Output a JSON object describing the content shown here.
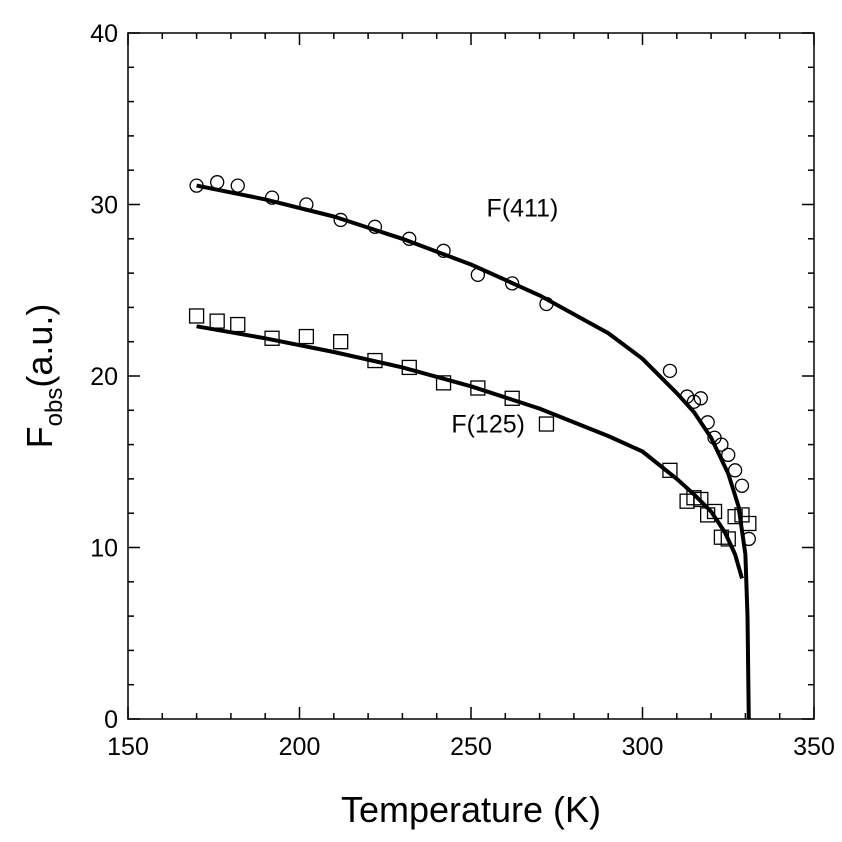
{
  "chart_data": {
    "type": "scatter",
    "xlabel": "Temperature (K)",
    "ylabel": {
      "main": "F",
      "sub": "obs",
      "unit": "(a.u.)"
    },
    "xlim": [
      150,
      350
    ],
    "ylim": [
      0,
      40
    ],
    "xticks": [
      "150",
      "200",
      "250",
      "300",
      "350"
    ],
    "yticks": [
      "0",
      "10",
      "20",
      "30",
      "40"
    ],
    "grid": false,
    "series": [
      {
        "name": "F(411)",
        "marker": "circle",
        "points": [
          [
            170,
            31.1
          ],
          [
            176,
            31.3
          ],
          [
            182,
            31.1
          ],
          [
            192,
            30.4
          ],
          [
            202,
            30.0
          ],
          [
            212,
            29.1
          ],
          [
            222,
            28.7
          ],
          [
            232,
            28.0
          ],
          [
            242,
            27.3
          ],
          [
            252,
            25.9
          ],
          [
            262,
            25.4
          ],
          [
            272,
            24.2
          ],
          [
            308,
            20.3
          ],
          [
            313,
            18.8
          ],
          [
            315,
            18.5
          ],
          [
            317,
            18.7
          ],
          [
            319,
            17.3
          ],
          [
            321,
            16.4
          ],
          [
            323,
            16.0
          ],
          [
            325,
            15.4
          ],
          [
            327,
            14.5
          ],
          [
            329,
            13.6
          ],
          [
            331,
            10.5
          ]
        ],
        "fit": [
          [
            170,
            31.1
          ],
          [
            190,
            30.3
          ],
          [
            210,
            29.3
          ],
          [
            230,
            28.0
          ],
          [
            250,
            26.5
          ],
          [
            270,
            24.7
          ],
          [
            290,
            22.5
          ],
          [
            300,
            21.0
          ],
          [
            310,
            19.0
          ],
          [
            315,
            17.9
          ],
          [
            320,
            16.4
          ],
          [
            325,
            14.3
          ],
          [
            328,
            12.4
          ],
          [
            330,
            9.6
          ],
          [
            330.6,
            6.0
          ],
          [
            331,
            0
          ]
        ]
      },
      {
        "name": "F(125)",
        "marker": "square",
        "points": [
          [
            170,
            23.5
          ],
          [
            176,
            23.2
          ],
          [
            182,
            23.0
          ],
          [
            192,
            22.2
          ],
          [
            202,
            22.3
          ],
          [
            212,
            22.0
          ],
          [
            222,
            20.9
          ],
          [
            232,
            20.5
          ],
          [
            242,
            19.6
          ],
          [
            252,
            19.3
          ],
          [
            262,
            18.7
          ],
          [
            272,
            17.2
          ],
          [
            308,
            14.5
          ],
          [
            313,
            12.7
          ],
          [
            315,
            12.9
          ],
          [
            317,
            12.8
          ],
          [
            319,
            11.9
          ],
          [
            321,
            12.1
          ],
          [
            323,
            10.6
          ],
          [
            325,
            10.5
          ],
          [
            327,
            11.8
          ],
          [
            329,
            11.9
          ],
          [
            331,
            11.4
          ]
        ],
        "fit": [
          [
            170,
            22.9
          ],
          [
            190,
            22.2
          ],
          [
            210,
            21.4
          ],
          [
            230,
            20.5
          ],
          [
            250,
            19.4
          ],
          [
            270,
            18.1
          ],
          [
            290,
            16.5
          ],
          [
            300,
            15.6
          ],
          [
            310,
            14.0
          ],
          [
            315,
            13.1
          ],
          [
            320,
            12.1
          ],
          [
            324,
            10.9
          ],
          [
            327,
            9.6
          ],
          [
            329,
            8.2
          ]
        ]
      }
    ],
    "annotations": [
      {
        "text": "F(411)",
        "x": 265,
        "y": 29.3
      },
      {
        "text": "F(125)",
        "x": 255,
        "y": 16.7
      }
    ]
  }
}
